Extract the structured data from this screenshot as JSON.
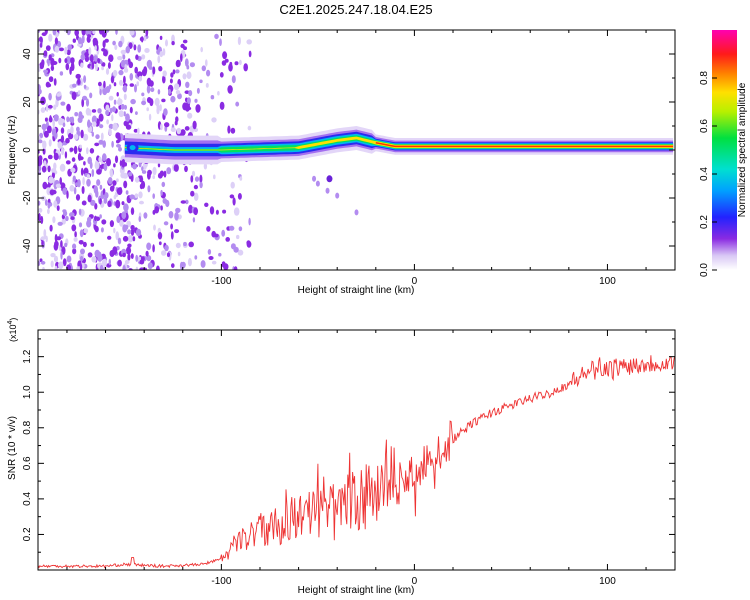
{
  "title": "C2E1.2025.247.18.04.E25",
  "colors": {
    "snr_line": "#ee3333",
    "spectrogram_low": "#8a2be2",
    "ridge": "#ff3300",
    "frame": "#000000"
  },
  "chart_data": [
    {
      "type": "heatmap",
      "name": "spectrogram",
      "title": "C2E1.2025.247.18.04.E25",
      "xlabel": "Height of straight line (km)",
      "ylabel": "Frequency (Hz)",
      "xlim": [
        -195,
        135
      ],
      "ylim": [
        -50,
        50
      ],
      "x_ticks": [
        -100,
        0,
        100
      ],
      "y_ticks": [
        -40,
        -20,
        0,
        20,
        40
      ],
      "ridge_frequency": [
        {
          "x": -150,
          "y": 1
        },
        {
          "x": -125,
          "y": 0
        },
        {
          "x": -100,
          "y": 0
        },
        {
          "x": -80,
          "y": 0.5
        },
        {
          "x": -60,
          "y": 1
        },
        {
          "x": -40,
          "y": 4
        },
        {
          "x": -30,
          "y": 5
        },
        {
          "x": -20,
          "y": 3
        },
        {
          "x": -10,
          "y": 1.5
        },
        {
          "x": 0,
          "y": 1.5
        },
        {
          "x": 50,
          "y": 1.5
        },
        {
          "x": 100,
          "y": 1.5
        },
        {
          "x": 135,
          "y": 1.5
        }
      ],
      "colorbar": {
        "label": "Normalized spectral amplitude",
        "range": [
          0.0,
          1.0
        ],
        "ticks": [
          0.0,
          0.2,
          0.4,
          0.6,
          0.8
        ],
        "tick_labels": [
          "0.0",
          "0.2",
          "0.4",
          "0.6",
          "0.8"
        ]
      }
    },
    {
      "type": "line",
      "name": "snr",
      "xlabel": "Height of straight line (km)",
      "ylabel": "SNR (10 * v/v)",
      "scale_label": "(x10",
      "scale_exponent": "4",
      "scale_suffix": ")",
      "xlim": [
        -195,
        135
      ],
      "ylim": [
        0.0,
        1.35
      ],
      "x_ticks": [
        -100,
        0,
        100
      ],
      "y_ticks": [
        0.2,
        0.4,
        0.6,
        0.8,
        1.0,
        1.2
      ],
      "y_tick_labels": [
        "0.2",
        "0.4",
        "0.6",
        "0.8",
        "1.0",
        "1.2"
      ],
      "series": [
        {
          "name": "SNR",
          "points": [
            {
              "x": -195,
              "y": 0.02
            },
            {
              "x": -160,
              "y": 0.02
            },
            {
              "x": -150,
              "y": 0.03
            },
            {
              "x": -130,
              "y": 0.02
            },
            {
              "x": -110,
              "y": 0.03
            },
            {
              "x": -100,
              "y": 0.06
            },
            {
              "x": -90,
              "y": 0.15
            },
            {
              "x": -80,
              "y": 0.2
            },
            {
              "x": -70,
              "y": 0.23
            },
            {
              "x": -60,
              "y": 0.26
            },
            {
              "x": -50,
              "y": 0.28
            },
            {
              "x": -40,
              "y": 0.3
            },
            {
              "x": -30,
              "y": 0.34
            },
            {
              "x": -20,
              "y": 0.38
            },
            {
              "x": -10,
              "y": 0.45
            },
            {
              "x": 0,
              "y": 0.52
            },
            {
              "x": 10,
              "y": 0.62
            },
            {
              "x": 20,
              "y": 0.73
            },
            {
              "x": 30,
              "y": 0.82
            },
            {
              "x": 40,
              "y": 0.88
            },
            {
              "x": 50,
              "y": 0.92
            },
            {
              "x": 60,
              "y": 0.96
            },
            {
              "x": 70,
              "y": 0.99
            },
            {
              "x": 80,
              "y": 1.04
            },
            {
              "x": 90,
              "y": 1.1
            },
            {
              "x": 95,
              "y": 1.13
            },
            {
              "x": 100,
              "y": 1.12
            },
            {
              "x": 110,
              "y": 1.14
            },
            {
              "x": 120,
              "y": 1.15
            },
            {
              "x": 135,
              "y": 1.16
            }
          ]
        }
      ]
    }
  ]
}
